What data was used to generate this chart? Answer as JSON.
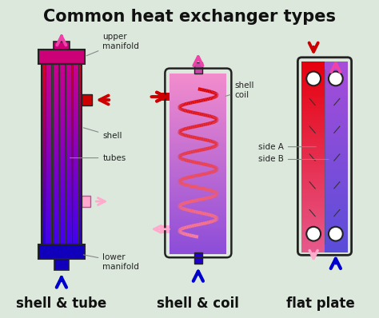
{
  "title": "Common heat exchanger types",
  "bg_color": "#dce8dc",
  "title_fontsize": 15,
  "title_color": "#111111",
  "label1": "shell & tube",
  "label2": "shell & coil",
  "label3": "flat plate",
  "label_fontsize": 12,
  "hot_color": "#cc0000",
  "cold_color": "#0000cc",
  "pink_color": "#ee44aa",
  "pink_light": "#ffaacc",
  "annotations": {
    "upper_manifold": "upper\nmanifold",
    "lower_manifold": "lower\nmanifold",
    "shell": "shell",
    "tubes": "tubes",
    "shell_coil": "shell\ncoil",
    "side_a": "side A",
    "side_b": "side B"
  }
}
